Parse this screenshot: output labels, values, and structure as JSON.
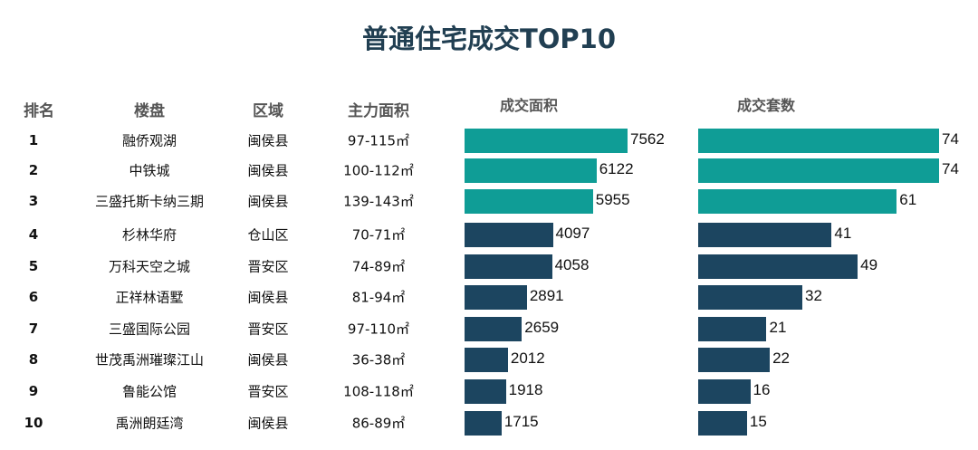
{
  "title": "普通住宅成交TOP10",
  "headers": {
    "rank": "排名",
    "project": "楼盘",
    "district": "区域",
    "main_area": "主力面积",
    "deal_area": "成交面积",
    "deal_units": "成交套数"
  },
  "colors": {
    "top3": "#0f9d96",
    "others": "#1c4560"
  },
  "rows": [
    {
      "rank": "1",
      "project": "融侨观湖",
      "district": "闽侯县",
      "main_area": "97-115㎡"
    },
    {
      "rank": "2",
      "project": "中铁城",
      "district": "闽侯县",
      "main_area": "100-112㎡"
    },
    {
      "rank": "3",
      "project": "三盛托斯卡纳三期",
      "district": "闽侯县",
      "main_area": "139-143㎡"
    },
    {
      "rank": "4",
      "project": "杉林华府",
      "district": "仓山区",
      "main_area": "70-71㎡"
    },
    {
      "rank": "5",
      "project": "万科天空之城",
      "district": "晋安区",
      "main_area": "74-89㎡"
    },
    {
      "rank": "6",
      "project": "正祥林语墅",
      "district": "闽侯县",
      "main_area": "81-94㎡"
    },
    {
      "rank": "7",
      "project": "三盛国际公园",
      "district": "晋安区",
      "main_area": "97-110㎡"
    },
    {
      "rank": "8",
      "project": "世茂禹洲璀璨江山",
      "district": "闽侯县",
      "main_area": "36-38㎡"
    },
    {
      "rank": "9",
      "project": "鲁能公馆",
      "district": "晋安区",
      "main_area": "108-118㎡"
    },
    {
      "rank": "10",
      "project": "禹洲朗廷湾",
      "district": "闽侯县",
      "main_area": "86-89㎡"
    }
  ],
  "chart_data": [
    {
      "type": "bar",
      "orientation": "horizontal",
      "title": "成交面积",
      "categories": [
        "融侨观湖",
        "中铁城",
        "三盛托斯卡纳三期",
        "杉林华府",
        "万科天空之城",
        "正祥林语墅",
        "三盛国际公园",
        "世茂禹洲璀璨江山",
        "鲁能公馆",
        "禹洲朗廷湾"
      ],
      "values": [
        7562,
        6122,
        5955,
        4097,
        4058,
        2891,
        2659,
        2012,
        1918,
        1715
      ],
      "data_labels": true,
      "grid": false
    },
    {
      "type": "bar",
      "orientation": "horizontal",
      "title": "成交套数",
      "categories": [
        "融侨观湖",
        "中铁城",
        "三盛托斯卡纳三期",
        "杉林华府",
        "万科天空之城",
        "正祥林语墅",
        "三盛国际公园",
        "世茂禹洲璀璨江山",
        "鲁能公馆",
        "禹洲朗廷湾"
      ],
      "values": [
        74,
        74,
        61,
        41,
        49,
        32,
        21,
        22,
        16,
        15
      ],
      "data_labels": true,
      "grid": false
    }
  ]
}
